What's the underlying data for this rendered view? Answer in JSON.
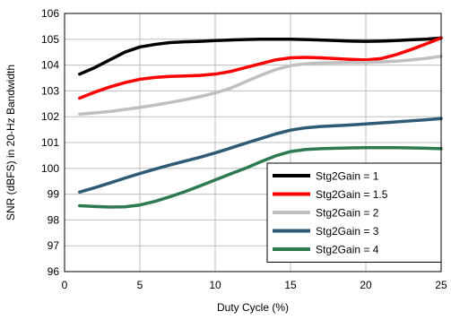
{
  "chart_data": {
    "type": "line",
    "title": "",
    "xlabel": "Duty Cycle (%)",
    "ylabel": "SNR (dBFS) in 20-Hz Bandwidth",
    "xlim": [
      0,
      25
    ],
    "ylim": [
      96,
      106
    ],
    "xticks": [
      0,
      5,
      10,
      15,
      20,
      25
    ],
    "yticks": [
      96,
      97,
      98,
      99,
      100,
      101,
      102,
      103,
      104,
      105,
      106
    ],
    "grid": true,
    "legend_position": "bottom-right",
    "series": [
      {
        "name": "Stg2Gain = 1",
        "color": "#000000",
        "x": [
          1,
          2,
          3,
          4,
          5,
          6,
          7,
          8,
          9,
          10,
          11,
          12,
          13,
          14,
          15,
          16,
          17,
          18,
          19,
          20,
          21,
          22,
          23,
          24,
          25
        ],
        "y": [
          103.65,
          103.9,
          104.2,
          104.5,
          104.7,
          104.8,
          104.87,
          104.9,
          104.92,
          104.95,
          104.97,
          104.99,
          105.0,
          105.0,
          105.0,
          104.99,
          104.97,
          104.95,
          104.93,
          104.92,
          104.93,
          104.95,
          104.98,
          105.0,
          105.05
        ]
      },
      {
        "name": "Stg2Gain = 1.5",
        "color": "#ff0000",
        "x": [
          1,
          2,
          3,
          4,
          5,
          6,
          7,
          8,
          9,
          10,
          11,
          12,
          13,
          14,
          15,
          16,
          17,
          18,
          19,
          20,
          21,
          22,
          23,
          24,
          25
        ],
        "y": [
          102.72,
          102.95,
          103.15,
          103.32,
          103.45,
          103.52,
          103.56,
          103.58,
          103.6,
          103.65,
          103.75,
          103.9,
          104.05,
          104.2,
          104.28,
          104.3,
          104.28,
          104.25,
          104.22,
          104.2,
          104.25,
          104.4,
          104.6,
          104.82,
          105.05
        ]
      },
      {
        "name": "Stg2Gain = 2",
        "color": "#bfbfbf",
        "x": [
          1,
          2,
          3,
          4,
          5,
          6,
          7,
          8,
          9,
          10,
          11,
          12,
          13,
          14,
          15,
          16,
          17,
          18,
          19,
          20,
          21,
          22,
          23,
          24,
          25
        ],
        "y": [
          102.1,
          102.15,
          102.2,
          102.28,
          102.36,
          102.45,
          102.55,
          102.66,
          102.78,
          102.92,
          103.1,
          103.35,
          103.6,
          103.82,
          103.98,
          104.05,
          104.08,
          104.09,
          104.1,
          104.1,
          104.12,
          104.15,
          104.2,
          104.26,
          104.34
        ]
      },
      {
        "name": "Stg2Gain = 3",
        "color": "#2e5a76",
        "x": [
          1,
          2,
          3,
          4,
          5,
          6,
          7,
          8,
          9,
          10,
          11,
          12,
          13,
          14,
          15,
          16,
          17,
          18,
          19,
          20,
          21,
          22,
          23,
          24,
          25
        ],
        "y": [
          99.08,
          99.25,
          99.43,
          99.62,
          99.8,
          99.97,
          100.13,
          100.28,
          100.43,
          100.6,
          100.78,
          100.97,
          101.15,
          101.33,
          101.48,
          101.57,
          101.62,
          101.65,
          101.68,
          101.72,
          101.76,
          101.8,
          101.84,
          101.88,
          101.93
        ]
      },
      {
        "name": "Stg2Gain = 4",
        "color": "#2e7a50",
        "x": [
          1,
          2,
          3,
          4,
          5,
          6,
          7,
          8,
          9,
          10,
          11,
          12,
          13,
          14,
          15,
          16,
          17,
          18,
          19,
          20,
          21,
          22,
          23,
          24,
          25
        ],
        "y": [
          98.55,
          98.52,
          98.5,
          98.51,
          98.58,
          98.72,
          98.9,
          99.1,
          99.32,
          99.55,
          99.78,
          100.0,
          100.25,
          100.48,
          100.65,
          100.73,
          100.76,
          100.78,
          100.79,
          100.8,
          100.8,
          100.8,
          100.79,
          100.78,
          100.76
        ]
      }
    ]
  }
}
